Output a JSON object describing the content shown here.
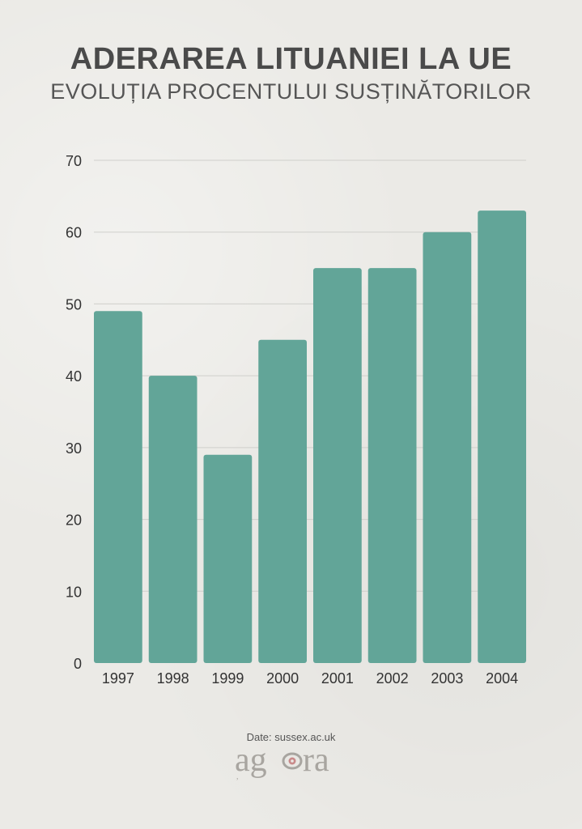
{
  "header": {
    "title": "ADERAREA LITUANIEI LA UE",
    "subtitle": "EVOLUȚIA PROCENTULUI SUSȚINĂTORILOR"
  },
  "footer": {
    "source": "Date: sussex.ac.uk",
    "logo_text": "agora",
    "logo_icon": "eye-icon"
  },
  "colors": {
    "bar": "#62a598",
    "grid": "#cfcfcb",
    "text": "#333333",
    "title": "#4a4a4a",
    "logo": "#a8a5a0",
    "logo_eye": "#c98a8a"
  },
  "chart_data": {
    "type": "bar",
    "title": "ADERAREA LITUANIEI LA UE",
    "subtitle": "EVOLUȚIA PROCENTULUI SUSȚINĂTORILOR",
    "categories": [
      "1997",
      "1998",
      "1999",
      "2000",
      "2001",
      "2002",
      "2003",
      "2004"
    ],
    "values": [
      49,
      40,
      29,
      45,
      55,
      55,
      60,
      63
    ],
    "xlabel": "",
    "ylabel": "",
    "ylim": [
      0,
      70
    ],
    "yticks": [
      0,
      10,
      20,
      30,
      40,
      50,
      60,
      70
    ],
    "grid": true,
    "legend": "none"
  }
}
